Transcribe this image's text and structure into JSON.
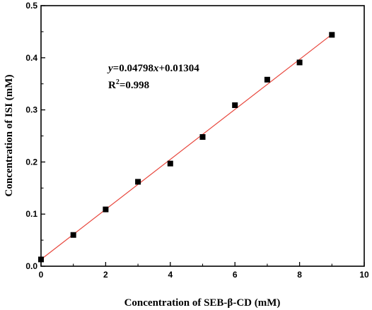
{
  "chart_data": {
    "type": "scatter",
    "xlabel": "Concentration of SEB-β-CD (mM)",
    "ylabel": "Concentration of ISI (mM)",
    "xlim": [
      0,
      10
    ],
    "ylim": [
      0,
      0.5
    ],
    "x_ticks": [
      "0",
      "2",
      "4",
      "6",
      "8",
      "10"
    ],
    "y_ticks": [
      "0.0",
      "0.1",
      "0.2",
      "0.3",
      "0.4",
      "0.5"
    ],
    "grid": false,
    "series": [
      {
        "marker": "square",
        "color": "#000000",
        "x": [
          0,
          1,
          2,
          3,
          4,
          5,
          6,
          7,
          8,
          9
        ],
        "y": [
          0.013,
          0.06,
          0.109,
          0.162,
          0.197,
          0.248,
          0.309,
          0.358,
          0.391,
          0.444
        ]
      }
    ],
    "fit_line": {
      "color": "#e8463c",
      "slope": 0.04798,
      "intercept": 0.01304,
      "x_range": [
        0,
        9
      ]
    },
    "annotations": {
      "equation": {
        "y": "y",
        "mid1": "=0.04798",
        "x": "x",
        "mid2": "+0.01304"
      },
      "r2": {
        "r": "R",
        "sup": "2",
        "value": "=0.998"
      }
    }
  }
}
